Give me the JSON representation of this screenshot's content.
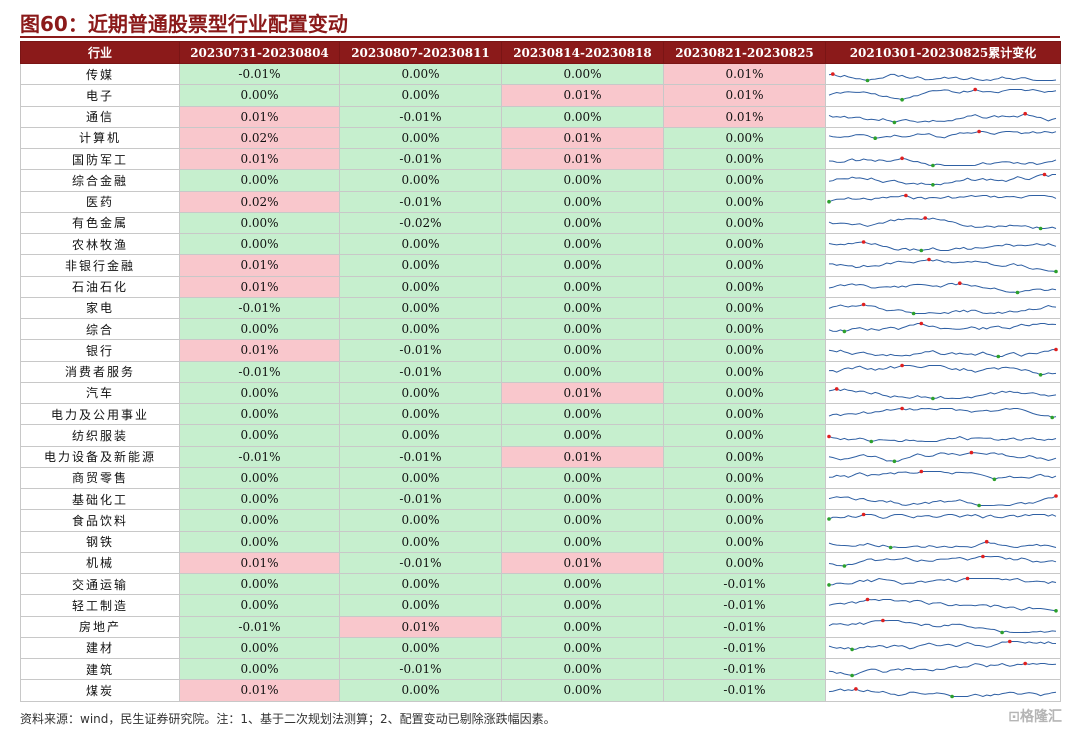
{
  "title": "图60：近期普通股票型行业配置变动",
  "headers": [
    "行业",
    "20230731-20230804",
    "20230807-20230811",
    "20230814-20230818",
    "20230821-20230825",
    "20210301-20230825累计变化"
  ],
  "rows": [
    {
      "industry": "传媒",
      "values": [
        "-0.01%",
        "0.00%",
        "0.00%",
        "0.01%"
      ]
    },
    {
      "industry": "电子",
      "values": [
        "0.00%",
        "0.00%",
        "0.01%",
        "0.01%"
      ]
    },
    {
      "industry": "通信",
      "values": [
        "0.01%",
        "-0.01%",
        "0.00%",
        "0.01%"
      ]
    },
    {
      "industry": "计算机",
      "values": [
        "0.02%",
        "0.00%",
        "0.01%",
        "0.00%"
      ]
    },
    {
      "industry": "国防军工",
      "values": [
        "0.01%",
        "-0.01%",
        "0.01%",
        "0.00%"
      ]
    },
    {
      "industry": "综合金融",
      "values": [
        "0.00%",
        "0.00%",
        "0.00%",
        "0.00%"
      ]
    },
    {
      "industry": "医药",
      "values": [
        "0.02%",
        "-0.01%",
        "0.00%",
        "0.00%"
      ]
    },
    {
      "industry": "有色金属",
      "values": [
        "0.00%",
        "-0.02%",
        "0.00%",
        "0.00%"
      ]
    },
    {
      "industry": "农林牧渔",
      "values": [
        "0.00%",
        "0.00%",
        "0.00%",
        "0.00%"
      ]
    },
    {
      "industry": "非银行金融",
      "values": [
        "0.01%",
        "0.00%",
        "0.00%",
        "0.00%"
      ]
    },
    {
      "industry": "石油石化",
      "values": [
        "0.01%",
        "0.00%",
        "0.00%",
        "0.00%"
      ]
    },
    {
      "industry": "家电",
      "values": [
        "-0.01%",
        "0.00%",
        "0.00%",
        "0.00%"
      ]
    },
    {
      "industry": "综合",
      "values": [
        "0.00%",
        "0.00%",
        "0.00%",
        "0.00%"
      ]
    },
    {
      "industry": "银行",
      "values": [
        "0.01%",
        "-0.01%",
        "0.00%",
        "0.00%"
      ]
    },
    {
      "industry": "消费者服务",
      "values": [
        "-0.01%",
        "-0.01%",
        "0.00%",
        "0.00%"
      ]
    },
    {
      "industry": "汽车",
      "values": [
        "0.00%",
        "0.00%",
        "0.01%",
        "0.00%"
      ]
    },
    {
      "industry": "电力及公用事业",
      "values": [
        "0.00%",
        "0.00%",
        "0.00%",
        "0.00%"
      ]
    },
    {
      "industry": "纺织服装",
      "values": [
        "0.00%",
        "0.00%",
        "0.00%",
        "0.00%"
      ]
    },
    {
      "industry": "电力设备及新能源",
      "values": [
        "-0.01%",
        "-0.01%",
        "0.01%",
        "0.00%"
      ]
    },
    {
      "industry": "商贸零售",
      "values": [
        "0.00%",
        "0.00%",
        "0.00%",
        "0.00%"
      ]
    },
    {
      "industry": "基础化工",
      "values": [
        "0.00%",
        "-0.01%",
        "0.00%",
        "0.00%"
      ]
    },
    {
      "industry": "食品饮料",
      "values": [
        "0.00%",
        "0.00%",
        "0.00%",
        "0.00%"
      ]
    },
    {
      "industry": "钢铁",
      "values": [
        "0.00%",
        "0.00%",
        "0.00%",
        "0.00%"
      ]
    },
    {
      "industry": "机械",
      "values": [
        "0.01%",
        "-0.01%",
        "0.01%",
        "0.00%"
      ]
    },
    {
      "industry": "交通运输",
      "values": [
        "0.00%",
        "0.00%",
        "0.00%",
        "-0.01%"
      ]
    },
    {
      "industry": "轻工制造",
      "values": [
        "0.00%",
        "0.00%",
        "0.00%",
        "-0.01%"
      ]
    },
    {
      "industry": "房地产",
      "values": [
        "-0.01%",
        "0.01%",
        "0.00%",
        "-0.01%"
      ]
    },
    {
      "industry": "建材",
      "values": [
        "0.00%",
        "0.00%",
        "0.00%",
        "-0.01%"
      ]
    },
    {
      "industry": "建筑",
      "values": [
        "0.00%",
        "-0.01%",
        "0.00%",
        "-0.01%"
      ]
    },
    {
      "industry": "煤炭",
      "values": [
        "0.01%",
        "0.00%",
        "0.00%",
        "-0.01%"
      ]
    }
  ],
  "cellColors": {
    "positive_fill": "#f9c7cc",
    "nonpositive_fill": "#c6efce",
    "header_fill": "#8b1a1a",
    "sparkline_color": "#2e5fa3",
    "max_marker_color": "#e02020",
    "min_marker_color": "#2ca02c"
  },
  "footer": "资料来源：wind，民生证券研究院。注：1、基于二次规划法测算；2、配置变动已剔除涨跌幅因素。",
  "watermark": "格隆汇"
}
